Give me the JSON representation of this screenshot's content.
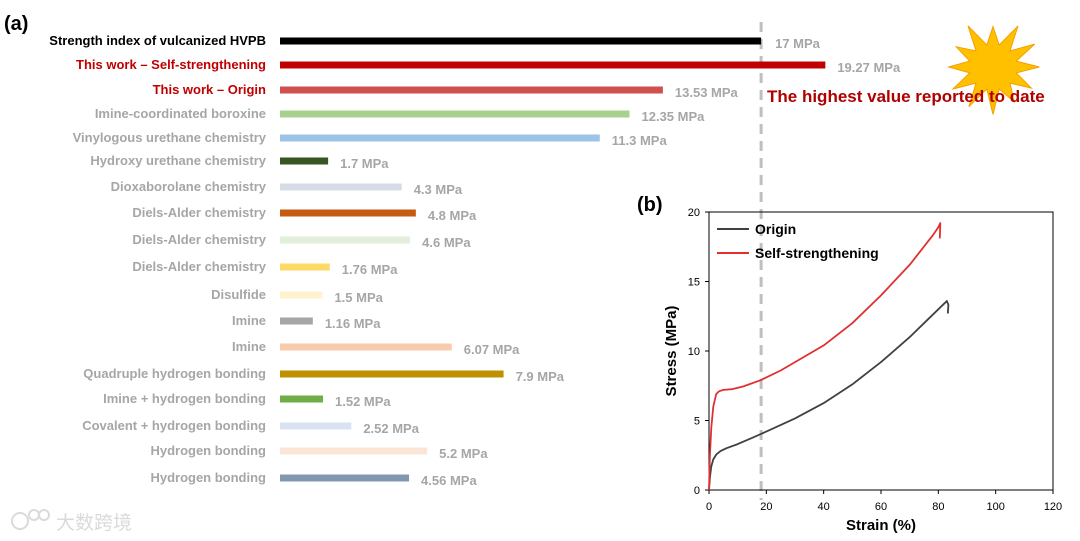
{
  "panel_a_label": "(a)",
  "panel_b_label": "(b)",
  "annotation": "The highest value reported to date",
  "watermark": "大数跨境",
  "colors": {
    "accent": "#b00000",
    "label_gray": "#a6a6a6",
    "star_fill": "#ffc000",
    "star_stroke": "#f5a000"
  },
  "chart_data": [
    {
      "type": "bar",
      "orientation": "horizontal",
      "unit": "MPa",
      "reference_line": 17,
      "categories": [
        "Strength index of vulcanized HVPB",
        "This work – Self-strengthening",
        "This work – Origin",
        "Imine-coordinated boroxine",
        "Vinylogous urethane chemistry",
        "Hydroxy urethane chemistry",
        "Dioxaborolane chemistry",
        "Diels-Alder chemistry",
        "Diels-Alder chemistry",
        "Diels-Alder chemistry",
        "Disulfide",
        "Imine",
        "Imine",
        "Quadruple hydrogen bonding",
        "Imine + hydrogen bonding",
        "Covalent + hydrogen bonding",
        "Hydrogen bonding",
        "Hydrogen bonding"
      ],
      "values": [
        17,
        19.27,
        13.53,
        12.35,
        11.3,
        1.7,
        4.3,
        4.8,
        4.6,
        1.76,
        1.5,
        1.16,
        6.07,
        7.9,
        1.52,
        2.52,
        5.2,
        4.56
      ],
      "value_labels": [
        "17 MPa",
        "19.27 MPa",
        "13.53 MPa",
        "12.35 MPa",
        "11.3 MPa",
        "1.7 MPa",
        "4.3 MPa",
        "4.8 MPa",
        "4.6 MPa",
        "1.76 MPa",
        "1.5 MPa",
        "1.16 MPa",
        "6.07 MPa",
        "7.9 MPa",
        "1.52 MPa",
        "2.52 MPa",
        "5.2 MPa",
        "4.56 MPa"
      ],
      "bar_colors": [
        "#000000",
        "#c00000",
        "#d05050",
        "#a9d18e",
        "#9dc3e6",
        "#375623",
        "#d6dce5",
        "#c55a11",
        "#e2efda",
        "#ffd966",
        "#fff2cc",
        "#a6a6a6",
        "#f8cbad",
        "#bf9000",
        "#70ad47",
        "#d9e2f3",
        "#fbe5d6",
        "#8497b0"
      ],
      "label_colors": [
        "#000000",
        "#c00000",
        "#c00000",
        "#a6a6a6",
        "#a6a6a6",
        "#a6a6a6",
        "#a6a6a6",
        "#a6a6a6",
        "#a6a6a6",
        "#a6a6a6",
        "#a6a6a6",
        "#a6a6a6",
        "#a6a6a6",
        "#a6a6a6",
        "#a6a6a6",
        "#a6a6a6",
        "#a6a6a6",
        "#a6a6a6"
      ]
    },
    {
      "type": "line",
      "xlabel": "Strain (%)",
      "ylabel": "Stress (MPa)",
      "xlim": [
        0,
        120
      ],
      "ylim": [
        0,
        20
      ],
      "xticks": [
        0,
        20,
        40,
        60,
        80,
        100,
        120
      ],
      "yticks": [
        0,
        5,
        10,
        15,
        20
      ],
      "legend_position": "top-left",
      "series": [
        {
          "name": "Origin",
          "color": "#404040",
          "x": [
            0,
            0.3,
            0.8,
            1.5,
            2.5,
            4,
            6,
            10,
            15,
            20,
            30,
            40,
            50,
            60,
            70,
            75,
            80,
            82,
            83,
            83.5,
            83.3
          ],
          "y": [
            0,
            0.9,
            1.7,
            2.2,
            2.55,
            2.8,
            3.0,
            3.3,
            3.75,
            4.2,
            5.15,
            6.25,
            7.6,
            9.2,
            11.0,
            12.0,
            13.0,
            13.4,
            13.6,
            13.3,
            12.7
          ]
        },
        {
          "name": "Self-strengthening",
          "color": "#e03030",
          "x": [
            0,
            0.3,
            0.8,
            1.5,
            2.5,
            3.5,
            5,
            8,
            12,
            18,
            25,
            30,
            40,
            50,
            60,
            70,
            78,
            80,
            80.7,
            80.5
          ],
          "y": [
            0,
            2.5,
            4.5,
            6.0,
            6.9,
            7.1,
            7.2,
            7.25,
            7.45,
            7.9,
            8.6,
            9.2,
            10.4,
            12.0,
            14.0,
            16.2,
            18.3,
            18.9,
            19.2,
            18.1
          ]
        }
      ]
    }
  ]
}
